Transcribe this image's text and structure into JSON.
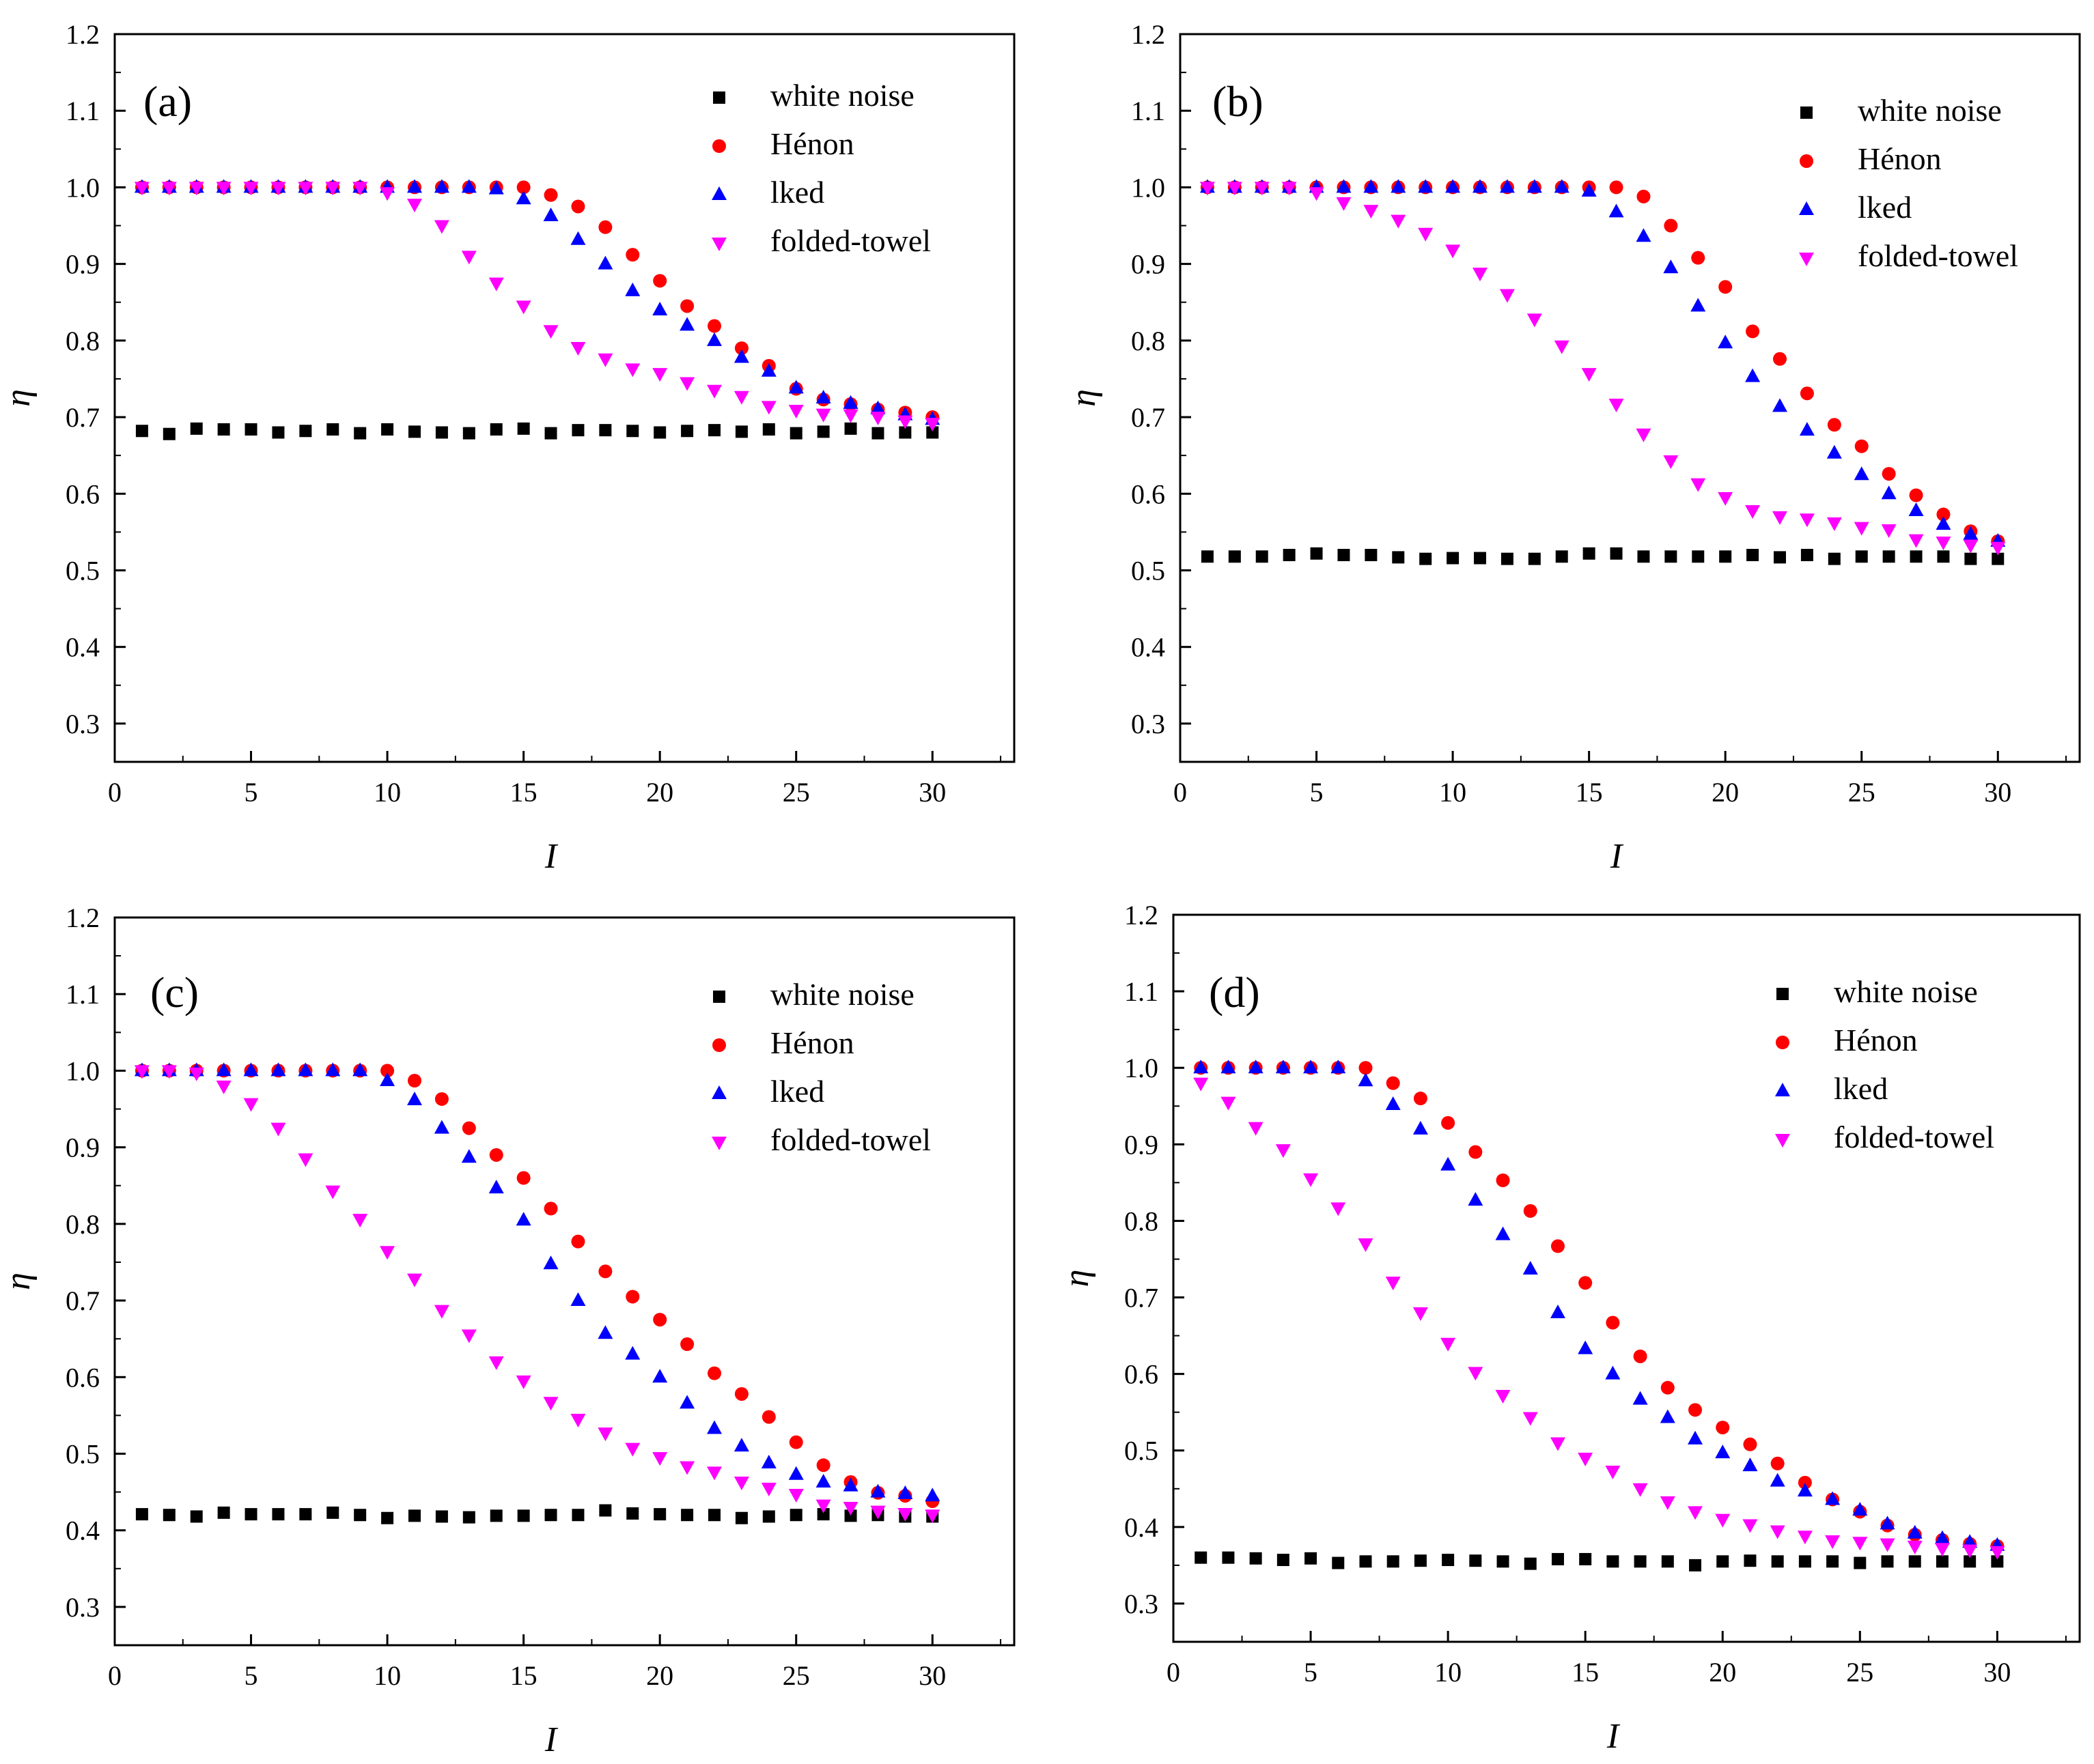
{
  "colors": {
    "white_noise": "#000000",
    "henon": "#ff0000",
    "lked": "#0000ff",
    "folded_towel": "#ff00ff",
    "axes": "#000000"
  },
  "legend_entries": [
    "white noise",
    "Hénon",
    "lked",
    "folded-towel"
  ],
  "chart_data": [
    {
      "type": "scatter",
      "panel": "(a)",
      "xlabel": "I",
      "ylabel": "η",
      "xlim": [
        0,
        33
      ],
      "ylim": [
        0.25,
        1.2
      ],
      "xticks": [
        0,
        5,
        10,
        15,
        20,
        25,
        30
      ],
      "yticks": [
        0.3,
        0.4,
        0.5,
        0.6,
        0.7,
        0.8,
        0.9,
        1.0,
        1.1,
        1.2
      ],
      "x": [
        1,
        2,
        3,
        4,
        5,
        6,
        7,
        8,
        9,
        10,
        11,
        12,
        13,
        14,
        15,
        16,
        17,
        18,
        19,
        20,
        21,
        22,
        23,
        24,
        25,
        26,
        27,
        28,
        29,
        30
      ],
      "series": [
        {
          "name": "white noise",
          "marker": "square",
          "values": [
            0.682,
            0.678,
            0.685,
            0.684,
            0.684,
            0.68,
            0.682,
            0.684,
            0.679,
            0.684,
            0.681,
            0.68,
            0.679,
            0.684,
            0.685,
            0.679,
            0.683,
            0.683,
            0.682,
            0.68,
            0.682,
            0.683,
            0.681,
            0.684,
            0.679,
            0.681,
            0.685,
            0.679,
            0.68,
            0.68
          ]
        },
        {
          "name": "Hénon",
          "marker": "circle",
          "values": [
            1.0,
            1.0,
            1.0,
            1.0,
            1.0,
            1.0,
            1.0,
            1.0,
            1.0,
            1.0,
            1.0,
            1.0,
            1.0,
            1.0,
            1.0,
            0.99,
            0.975,
            0.948,
            0.912,
            0.878,
            0.845,
            0.819,
            0.79,
            0.767,
            0.737,
            0.723,
            0.717,
            0.71,
            0.706,
            0.7
          ]
        },
        {
          "name": "lked",
          "marker": "triangle-up",
          "values": [
            1.0,
            1.0,
            1.0,
            1.0,
            1.0,
            1.0,
            1.0,
            1.0,
            1.0,
            1.0,
            1.0,
            1.0,
            1.0,
            0.998,
            0.985,
            0.963,
            0.932,
            0.9,
            0.865,
            0.84,
            0.82,
            0.8,
            0.778,
            0.76,
            0.738,
            0.725,
            0.718,
            0.711,
            0.703,
            0.697
          ]
        },
        {
          "name": "folded-towel",
          "marker": "triangle-down",
          "values": [
            1.0,
            1.0,
            1.0,
            1.0,
            1.0,
            1.0,
            1.0,
            1.0,
            1.0,
            0.993,
            0.978,
            0.95,
            0.91,
            0.875,
            0.845,
            0.813,
            0.791,
            0.776,
            0.763,
            0.757,
            0.745,
            0.735,
            0.727,
            0.714,
            0.709,
            0.704,
            0.703,
            0.7,
            0.695,
            0.692
          ]
        }
      ]
    },
    {
      "type": "scatter",
      "panel": "(b)",
      "xlabel": "I",
      "ylabel": "η",
      "xlim": [
        0,
        33
      ],
      "ylim": [
        0.25,
        1.2
      ],
      "xticks": [
        0,
        5,
        10,
        15,
        20,
        25,
        30
      ],
      "yticks": [
        0.3,
        0.4,
        0.5,
        0.6,
        0.7,
        0.8,
        0.9,
        1.0,
        1.1,
        1.2
      ],
      "x": [
        1,
        2,
        3,
        4,
        5,
        6,
        7,
        8,
        9,
        10,
        11,
        12,
        13,
        14,
        15,
        16,
        17,
        18,
        19,
        20,
        21,
        22,
        23,
        24,
        25,
        26,
        27,
        28,
        29,
        30
      ],
      "series": [
        {
          "name": "white noise",
          "marker": "square",
          "values": [
            0.518,
            0.518,
            0.518,
            0.52,
            0.522,
            0.52,
            0.52,
            0.517,
            0.515,
            0.516,
            0.516,
            0.515,
            0.515,
            0.518,
            0.522,
            0.522,
            0.518,
            0.518,
            0.518,
            0.518,
            0.52,
            0.517,
            0.52,
            0.515,
            0.518,
            0.518,
            0.518,
            0.518,
            0.515,
            0.515
          ]
        },
        {
          "name": "Hénon",
          "marker": "circle",
          "values": [
            1.0,
            1.0,
            1.0,
            1.0,
            1.0,
            1.0,
            1.0,
            1.0,
            1.0,
            1.0,
            1.0,
            1.0,
            1.0,
            1.0,
            1.0,
            1.0,
            0.988,
            0.95,
            0.908,
            0.87,
            0.812,
            0.776,
            0.731,
            0.69,
            0.662,
            0.626,
            0.598,
            0.573,
            0.551,
            0.538
          ]
        },
        {
          "name": "lked",
          "marker": "triangle-up",
          "values": [
            1.0,
            1.0,
            1.0,
            1.0,
            1.0,
            1.0,
            1.0,
            1.0,
            1.0,
            1.0,
            1.0,
            1.0,
            1.0,
            1.0,
            0.995,
            0.968,
            0.936,
            0.895,
            0.845,
            0.797,
            0.753,
            0.714,
            0.683,
            0.653,
            0.625,
            0.6,
            0.578,
            0.56,
            0.547,
            0.538
          ]
        },
        {
          "name": "folded-towel",
          "marker": "triangle-down",
          "values": [
            1.0,
            1.0,
            1.0,
            1.0,
            0.993,
            0.98,
            0.97,
            0.957,
            0.94,
            0.918,
            0.888,
            0.86,
            0.828,
            0.793,
            0.757,
            0.717,
            0.678,
            0.643,
            0.613,
            0.595,
            0.578,
            0.57,
            0.567,
            0.562,
            0.556,
            0.553,
            0.54,
            0.537,
            0.533,
            0.53
          ]
        }
      ]
    },
    {
      "type": "scatter",
      "panel": "(c)",
      "xlabel": "I",
      "ylabel": "η",
      "xlim": [
        0,
        33
      ],
      "ylim": [
        0.25,
        1.2
      ],
      "xticks": [
        0,
        5,
        10,
        15,
        20,
        25,
        30
      ],
      "yticks": [
        0.3,
        0.4,
        0.5,
        0.6,
        0.7,
        0.8,
        0.9,
        1.0,
        1.1,
        1.2
      ],
      "x": [
        1,
        2,
        3,
        4,
        5,
        6,
        7,
        8,
        9,
        10,
        11,
        12,
        13,
        14,
        15,
        16,
        17,
        18,
        19,
        20,
        21,
        22,
        23,
        24,
        25,
        26,
        27,
        28,
        29,
        30
      ],
      "series": [
        {
          "name": "white noise",
          "marker": "square",
          "values": [
            0.421,
            0.42,
            0.418,
            0.423,
            0.421,
            0.421,
            0.421,
            0.423,
            0.42,
            0.416,
            0.419,
            0.418,
            0.417,
            0.419,
            0.419,
            0.42,
            0.42,
            0.426,
            0.422,
            0.421,
            0.42,
            0.42,
            0.416,
            0.418,
            0.42,
            0.421,
            0.419,
            0.42,
            0.418,
            0.418
          ]
        },
        {
          "name": "Hénon",
          "marker": "circle",
          "values": [
            1.0,
            1.0,
            1.0,
            1.0,
            1.0,
            1.0,
            1.0,
            1.0,
            1.0,
            1.0,
            0.987,
            0.963,
            0.925,
            0.89,
            0.86,
            0.82,
            0.777,
            0.738,
            0.705,
            0.675,
            0.643,
            0.605,
            0.578,
            0.548,
            0.515,
            0.485,
            0.463,
            0.449,
            0.445,
            0.438
          ]
        },
        {
          "name": "lked",
          "marker": "triangle-up",
          "values": [
            1.0,
            1.0,
            1.0,
            1.0,
            1.0,
            1.0,
            1.0,
            1.0,
            1.0,
            0.987,
            0.962,
            0.925,
            0.887,
            0.847,
            0.805,
            0.748,
            0.7,
            0.657,
            0.63,
            0.6,
            0.566,
            0.533,
            0.51,
            0.488,
            0.473,
            0.463,
            0.458,
            0.45,
            0.448,
            0.445
          ]
        },
        {
          "name": "folded-towel",
          "marker": "triangle-down",
          "values": [
            1.0,
            1.0,
            0.997,
            0.98,
            0.957,
            0.925,
            0.885,
            0.843,
            0.806,
            0.764,
            0.728,
            0.687,
            0.655,
            0.62,
            0.595,
            0.567,
            0.545,
            0.527,
            0.507,
            0.495,
            0.483,
            0.476,
            0.463,
            0.455,
            0.447,
            0.433,
            0.43,
            0.425,
            0.422,
            0.42
          ]
        }
      ]
    },
    {
      "type": "scatter",
      "panel": "(d)",
      "xlabel": "I",
      "ylabel": "η",
      "xlim": [
        0,
        33
      ],
      "ylim": [
        0.25,
        1.2
      ],
      "xticks": [
        0,
        5,
        10,
        15,
        20,
        25,
        30
      ],
      "yticks": [
        0.3,
        0.4,
        0.5,
        0.6,
        0.7,
        0.8,
        0.9,
        1.0,
        1.1,
        1.2
      ],
      "x": [
        1,
        2,
        3,
        4,
        5,
        6,
        7,
        8,
        9,
        10,
        11,
        12,
        13,
        14,
        15,
        16,
        17,
        18,
        19,
        20,
        21,
        22,
        23,
        24,
        25,
        26,
        27,
        28,
        29,
        30
      ],
      "series": [
        {
          "name": "white noise",
          "marker": "square",
          "values": [
            0.36,
            0.36,
            0.359,
            0.357,
            0.359,
            0.353,
            0.355,
            0.355,
            0.356,
            0.357,
            0.356,
            0.355,
            0.352,
            0.358,
            0.358,
            0.355,
            0.355,
            0.355,
            0.35,
            0.355,
            0.356,
            0.355,
            0.355,
            0.355,
            0.353,
            0.355,
            0.355,
            0.355,
            0.355,
            0.355
          ]
        },
        {
          "name": "Hénon",
          "marker": "circle",
          "values": [
            1.0,
            1.0,
            1.0,
            1.0,
            1.0,
            1.0,
            1.0,
            0.98,
            0.96,
            0.928,
            0.89,
            0.853,
            0.813,
            0.767,
            0.719,
            0.667,
            0.623,
            0.582,
            0.553,
            0.53,
            0.508,
            0.483,
            0.458,
            0.436,
            0.42,
            0.402,
            0.39,
            0.383,
            0.378,
            0.375
          ]
        },
        {
          "name": "lked",
          "marker": "triangle-up",
          "values": [
            1.0,
            1.0,
            1.0,
            1.0,
            1.0,
            1.0,
            0.983,
            0.952,
            0.92,
            0.873,
            0.827,
            0.782,
            0.737,
            0.68,
            0.633,
            0.6,
            0.567,
            0.543,
            0.515,
            0.497,
            0.48,
            0.46,
            0.447,
            0.436,
            0.422,
            0.404,
            0.392,
            0.385,
            0.38,
            0.376
          ]
        },
        {
          "name": "folded-towel",
          "marker": "triangle-down",
          "values": [
            0.98,
            0.955,
            0.922,
            0.893,
            0.855,
            0.817,
            0.77,
            0.72,
            0.68,
            0.64,
            0.602,
            0.572,
            0.543,
            0.51,
            0.49,
            0.473,
            0.45,
            0.433,
            0.42,
            0.41,
            0.403,
            0.395,
            0.388,
            0.382,
            0.38,
            0.378,
            0.375,
            0.372,
            0.37,
            0.368
          ]
        }
      ]
    }
  ]
}
